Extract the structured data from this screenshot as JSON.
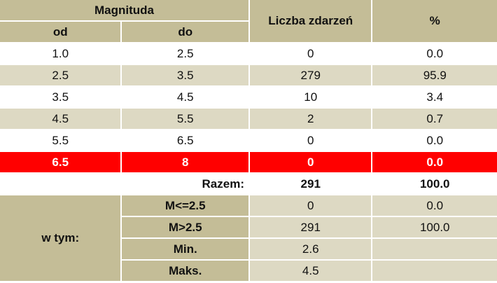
{
  "header": {
    "magnitude": "Magnituda",
    "from": "od",
    "to": "do",
    "count": "Liczba zdarzeń",
    "percent": "%"
  },
  "rows": [
    [
      "1.0",
      "2.5",
      "0",
      "0.0"
    ],
    [
      "2.5",
      "3.5",
      "279",
      "95.9"
    ],
    [
      "3.5",
      "4.5",
      "10",
      "3.4"
    ],
    [
      "4.5",
      "5.5",
      "2",
      "0.7"
    ],
    [
      "5.5",
      "6.5",
      "0",
      "0.0"
    ],
    [
      "6.5",
      "8",
      "0",
      "0.0"
    ]
  ],
  "highlight_row": 5,
  "total": {
    "label": "Razem:",
    "count": "291",
    "percent": "100.0"
  },
  "breakdown": {
    "label": "w tym:",
    "rows": [
      [
        "M<=2.5",
        "0",
        "0.0"
      ],
      [
        "M>2.5",
        "291",
        "100.0"
      ],
      [
        "Min.",
        "2.6"
      ],
      [
        "Maks.",
        "4.5"
      ]
    ]
  }
}
